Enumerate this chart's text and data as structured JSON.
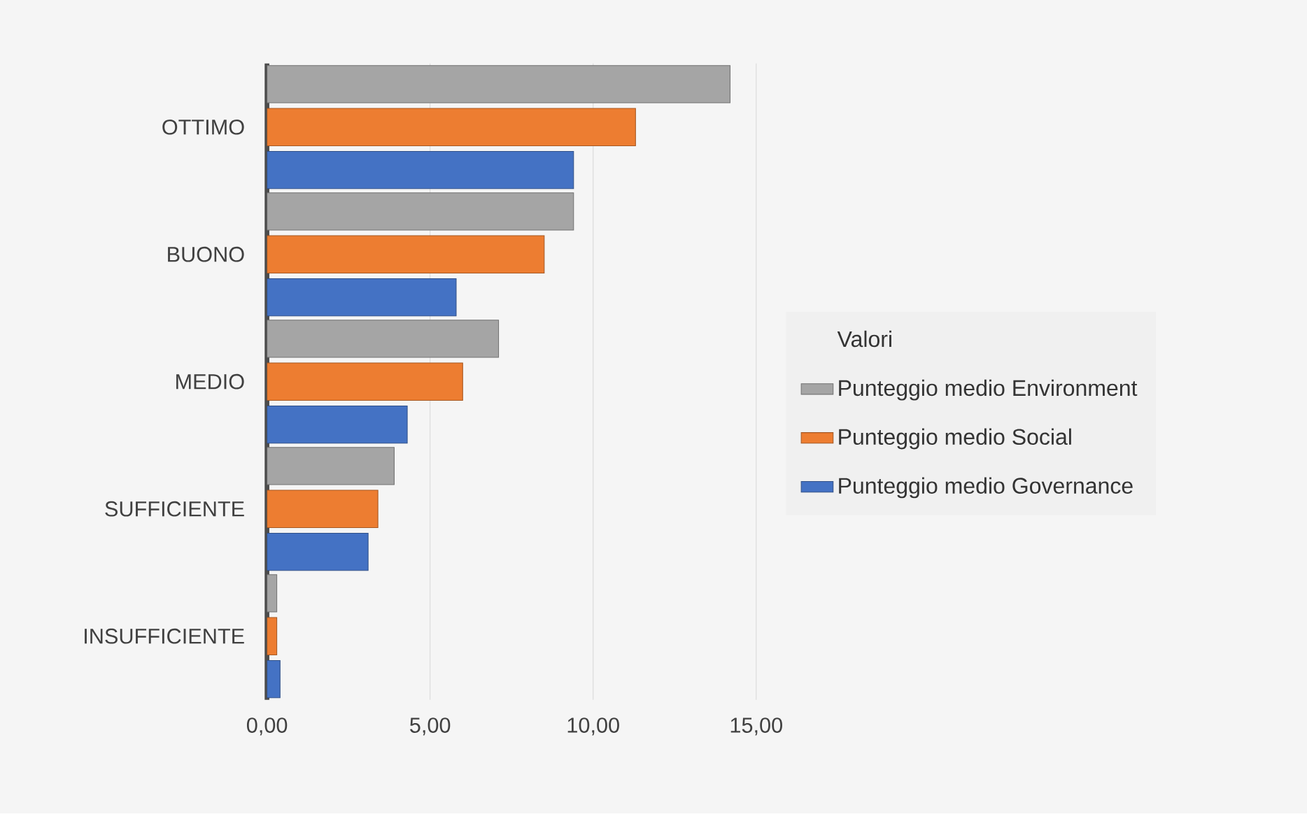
{
  "chart_data": {
    "type": "bar",
    "orientation": "horizontal",
    "legend_title": "Valori",
    "categories": [
      "OTTIMO",
      "BUONO",
      "MEDIO",
      "SUFFICIENTE",
      "INSUFFICIENTE"
    ],
    "series": [
      {
        "name": "Punteggio medio Environment",
        "color": "#a5a5a5",
        "values": [
          14.2,
          9.4,
          7.1,
          3.9,
          0.3
        ]
      },
      {
        "name": "Punteggio medio Social",
        "color": "#ed7d31",
        "values": [
          11.3,
          8.5,
          6.0,
          3.4,
          0.3
        ]
      },
      {
        "name": "Punteggio medio Governance",
        "color": "#4472c4",
        "values": [
          9.4,
          5.8,
          4.3,
          3.1,
          0.4
        ]
      }
    ],
    "xlim": [
      0,
      15
    ],
    "xticks": [
      {
        "value": 0,
        "label": "0,00"
      },
      {
        "value": 5,
        "label": "5,00"
      },
      {
        "value": 10,
        "label": "10,00"
      },
      {
        "value": 15,
        "label": "15,00"
      }
    ],
    "grid": "x",
    "legend": "right"
  }
}
